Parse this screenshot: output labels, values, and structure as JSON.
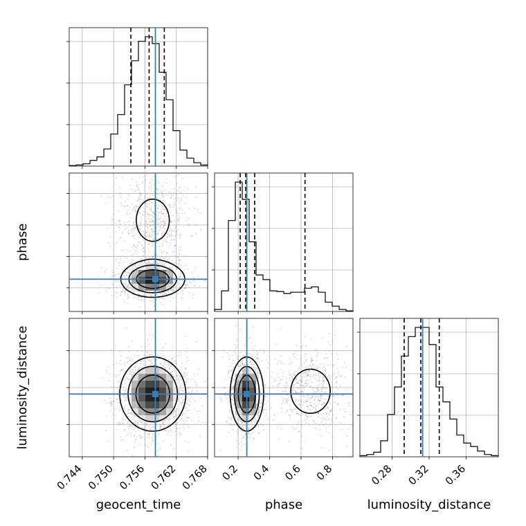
{
  "chart_data": {
    "type": "corner",
    "parameters": [
      "geocent_time",
      "phase",
      "luminosity_distance"
    ],
    "truths": {
      "geocent_time": 0.758,
      "phase": 0.255,
      "luminosity_distance": 0.313
    },
    "quantiles": {
      "geocent_time": [
        0.7533,
        0.7568,
        0.7597
      ],
      "phase": [
        0.213,
        0.248,
        0.305,
        0.625
      ],
      "luminosity_distance": [
        0.293,
        0.311,
        0.331
      ]
    },
    "axes": {
      "geocent_time": {
        "range": [
          0.7415,
          0.768
        ],
        "ticks": [
          0.744,
          0.75,
          0.756,
          0.762,
          0.768
        ],
        "tick_labels": [
          "0.744",
          "0.750",
          "0.756",
          "0.762",
          "0.768"
        ]
      },
      "phase": {
        "range": [
          0.05,
          0.93
        ],
        "ticks": [
          0.2,
          0.4,
          0.6,
          0.8
        ],
        "tick_labels": [
          "0.2",
          "0.4",
          "0.6",
          "0.8"
        ]
      },
      "luminosity_distance": {
        "range": [
          0.245,
          0.395
        ],
        "ticks": [
          0.28,
          0.32,
          0.36
        ],
        "tick_labels": [
          "0.28",
          "0.32",
          "0.36"
        ]
      }
    },
    "histograms": {
      "geocent_time": {
        "edges": [
          0.7415,
          0.74283,
          0.74415,
          0.74548,
          0.7468,
          0.74813,
          0.74945,
          0.75078,
          0.7521,
          0.75343,
          0.75475,
          0.75608,
          0.7574,
          0.75873,
          0.76005,
          0.76138,
          0.7627,
          0.76403,
          0.76535,
          0.76668,
          0.768
        ],
        "counts": [
          0.5,
          1,
          2,
          5,
          8,
          15,
          28,
          45,
          71,
          92,
          109,
          113,
          107,
          82,
          58,
          31,
          14,
          7,
          3,
          1
        ]
      },
      "phase": {
        "edges": [
          0.05,
          0.094,
          0.138,
          0.182,
          0.226,
          0.27,
          0.314,
          0.358,
          0.402,
          0.446,
          0.49,
          0.534,
          0.578,
          0.622,
          0.666,
          0.71,
          0.754,
          0.798,
          0.842,
          0.886,
          0.93
        ],
        "counts": [
          3,
          31,
          137,
          195,
          169,
          105,
          55,
          48,
          31,
          30,
          27,
          29,
          29,
          35,
          37,
          29,
          14,
          8,
          3,
          1
        ]
      },
      "luminosity_distance": {
        "edges": [
          0.245,
          0.2525,
          0.26,
          0.2675,
          0.275,
          0.2825,
          0.29,
          0.2975,
          0.305,
          0.3125,
          0.32,
          0.3275,
          0.335,
          0.3425,
          0.35,
          0.3575,
          0.365,
          0.3725,
          0.38,
          0.3875,
          0.395
        ],
        "counts": [
          1,
          2,
          4,
          14,
          37,
          61,
          88,
          105,
          113,
          113,
          98,
          61,
          48,
          33,
          19,
          12,
          9,
          5,
          2,
          1
        ]
      }
    },
    "density_2d": {
      "phase_vs_geocent_time": {
        "components": [
          {
            "weight": 0.62,
            "mean": [
              0.7575,
              0.255
            ],
            "sd": [
              0.0032,
              0.06
            ]
          },
          {
            "weight": 0.38,
            "mean": [
              0.7575,
              0.63
            ],
            "sd": [
              0.0033,
              0.14
            ]
          }
        ]
      },
      "luminosity_distance_vs_geocent_time": {
        "components": [
          {
            "weight": 1.0,
            "mean": [
              0.7575,
              0.313
            ],
            "sd": [
              0.0033,
              0.021
            ]
          }
        ]
      },
      "luminosity_distance_vs_phase": {
        "components": [
          {
            "weight": 0.62,
            "mean": [
              0.255,
              0.313
            ],
            "sd": [
              0.055,
              0.021
            ]
          },
          {
            "weight": 0.38,
            "mean": [
              0.66,
              0.316
            ],
            "sd": [
              0.11,
              0.021
            ]
          }
        ]
      }
    },
    "colors": {
      "truth": "#3b7cb5",
      "line": "#000000",
      "grid": "#b0b0b0",
      "samples": "#7f7f7f"
    },
    "grid": true
  }
}
